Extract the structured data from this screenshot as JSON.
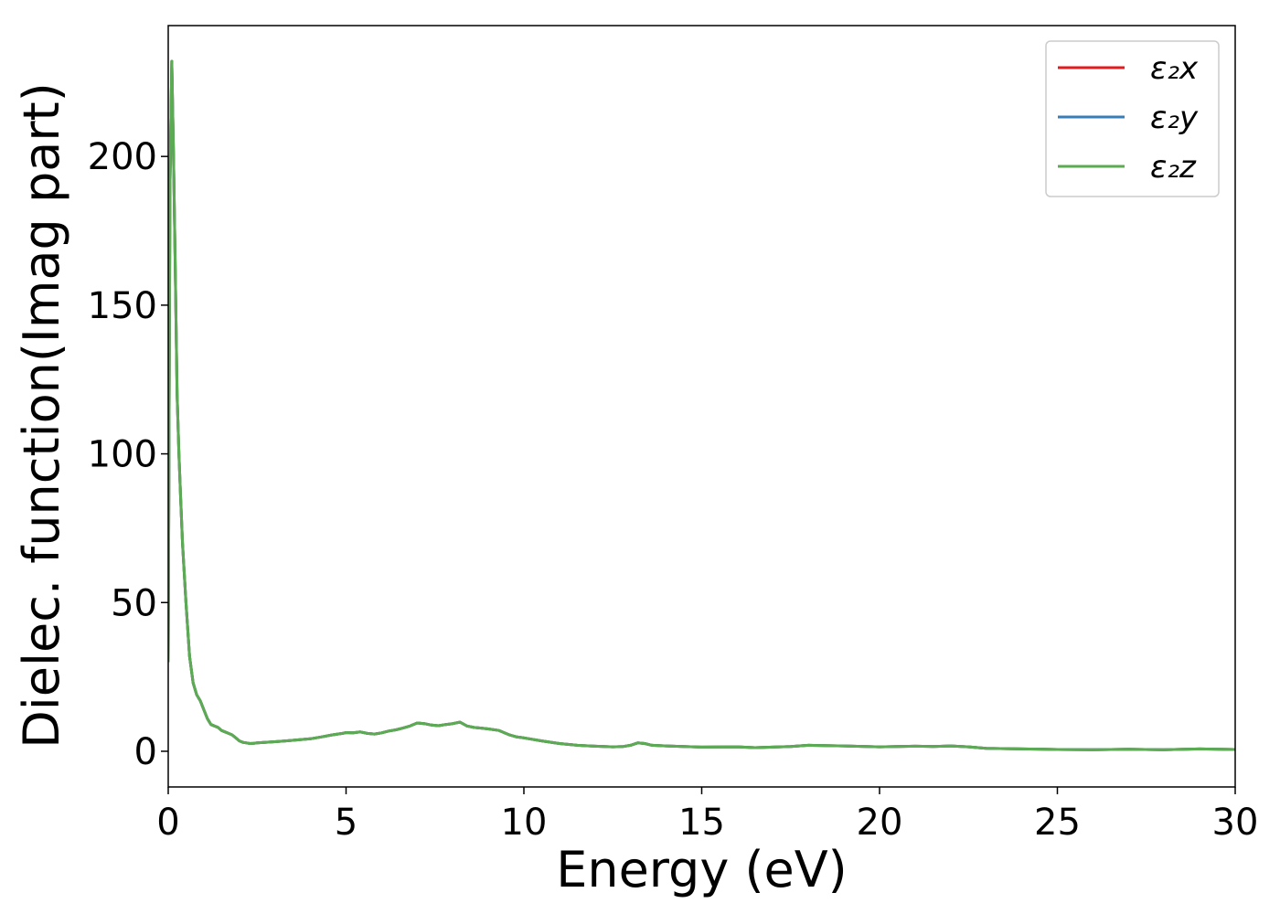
{
  "chart_data": {
    "type": "line",
    "xlabel": "Energy (eV)",
    "ylabel": "Dielec. function(Imag part)",
    "xlim": [
      0,
      30
    ],
    "ylim": [
      -12,
      244
    ],
    "xticks": [
      0,
      5,
      10,
      15,
      20,
      25,
      30
    ],
    "yticks": [
      0,
      50,
      100,
      150,
      200
    ],
    "grid": false,
    "legend_position": "top-right",
    "x": [
      0,
      0.05,
      0.1,
      0.15,
      0.2,
      0.25,
      0.3,
      0.35,
      0.4,
      0.5,
      0.6,
      0.7,
      0.8,
      0.9,
      1.0,
      1.1,
      1.2,
      1.3,
      1.4,
      1.5,
      1.6,
      1.7,
      1.8,
      1.9,
      2.0,
      2.1,
      2.2,
      2.3,
      2.4,
      2.5,
      2.7,
      3.0,
      3.3,
      3.6,
      4.0,
      4.3,
      4.6,
      4.9,
      5.0,
      5.2,
      5.4,
      5.6,
      5.8,
      6.0,
      6.2,
      6.4,
      6.6,
      6.8,
      7.0,
      7.2,
      7.4,
      7.6,
      7.8,
      8.0,
      8.2,
      8.4,
      8.6,
      8.8,
      9.0,
      9.3,
      9.6,
      9.8,
      10.0,
      10.5,
      11.0,
      11.5,
      12.0,
      12.5,
      12.8,
      13.0,
      13.2,
      13.4,
      13.6,
      14.0,
      15.0,
      16.0,
      16.5,
      17.0,
      17.5,
      18.0,
      19.0,
      20.0,
      20.5,
      21.0,
      21.5,
      22.0,
      22.5,
      23.0,
      24.0,
      25.0,
      26.0,
      27.0,
      28.0,
      29.0,
      30.0
    ],
    "series": [
      {
        "name": "ε₂x",
        "color": "#e41a1c",
        "values": [
          30,
          190,
          232,
          200,
          160,
          120,
          100,
          85,
          70,
          50,
          32,
          23,
          19,
          17,
          14,
          11,
          9,
          8.5,
          8,
          7,
          6.5,
          6,
          5.5,
          4.5,
          3.5,
          3,
          2.8,
          2.6,
          2.7,
          2.8,
          3,
          3.2,
          3.5,
          3.8,
          4.2,
          4.8,
          5.5,
          6,
          6.3,
          6.2,
          6.5,
          6,
          5.8,
          6.2,
          6.8,
          7.2,
          7.8,
          8.5,
          9.5,
          9.3,
          8.8,
          8.6,
          9,
          9.3,
          9.8,
          8.5,
          8,
          7.8,
          7.5,
          7,
          5.5,
          4.8,
          4.5,
          3.5,
          2.6,
          2.0,
          1.7,
          1.5,
          1.6,
          2.0,
          2.8,
          2.6,
          2.0,
          1.8,
          1.4,
          1.5,
          1.2,
          1.4,
          1.6,
          2.0,
          1.8,
          1.5,
          1.6,
          1.7,
          1.6,
          1.8,
          1.5,
          1.0,
          0.8,
          0.6,
          0.5,
          0.7,
          0.5,
          0.8,
          0.6
        ]
      },
      {
        "name": "ε₂y",
        "color": "#377eb8",
        "values": [
          30,
          190,
          232,
          200,
          160,
          120,
          100,
          85,
          70,
          50,
          32,
          23,
          19,
          17,
          14,
          11,
          9,
          8.5,
          8,
          7,
          6.5,
          6,
          5.5,
          4.5,
          3.5,
          3,
          2.8,
          2.6,
          2.7,
          2.8,
          3,
          3.2,
          3.5,
          3.8,
          4.2,
          4.8,
          5.5,
          6,
          6.3,
          6.2,
          6.5,
          6,
          5.8,
          6.2,
          6.8,
          7.2,
          7.8,
          8.5,
          9.5,
          9.3,
          8.8,
          8.6,
          9,
          9.3,
          9.8,
          8.5,
          8,
          7.8,
          7.5,
          7,
          5.5,
          4.8,
          4.5,
          3.5,
          2.6,
          2.0,
          1.7,
          1.5,
          1.6,
          2.0,
          2.8,
          2.6,
          2.0,
          1.8,
          1.4,
          1.5,
          1.2,
          1.4,
          1.6,
          2.0,
          1.8,
          1.5,
          1.6,
          1.7,
          1.6,
          1.8,
          1.5,
          1.0,
          0.8,
          0.6,
          0.5,
          0.7,
          0.5,
          0.8,
          0.6
        ]
      },
      {
        "name": "ε₂z",
        "color": "#5bab52",
        "values": [
          30,
          190,
          232,
          200,
          160,
          120,
          100,
          85,
          70,
          50,
          32,
          23,
          19,
          17,
          14,
          11,
          9,
          8.5,
          8,
          7,
          6.5,
          6,
          5.5,
          4.5,
          3.5,
          3,
          2.8,
          2.6,
          2.7,
          2.8,
          3,
          3.2,
          3.5,
          3.8,
          4.2,
          4.8,
          5.5,
          6,
          6.3,
          6.2,
          6.5,
          6,
          5.8,
          6.2,
          6.8,
          7.2,
          7.8,
          8.5,
          9.5,
          9.3,
          8.8,
          8.6,
          9,
          9.3,
          9.8,
          8.5,
          8,
          7.8,
          7.5,
          7,
          5.5,
          4.8,
          4.5,
          3.5,
          2.6,
          2.0,
          1.7,
          1.5,
          1.6,
          2.0,
          2.8,
          2.6,
          2.0,
          1.8,
          1.4,
          1.5,
          1.2,
          1.4,
          1.6,
          2.0,
          1.8,
          1.5,
          1.6,
          1.7,
          1.6,
          1.8,
          1.5,
          1.0,
          0.8,
          0.6,
          0.5,
          0.7,
          0.5,
          0.8,
          0.6
        ]
      }
    ]
  }
}
